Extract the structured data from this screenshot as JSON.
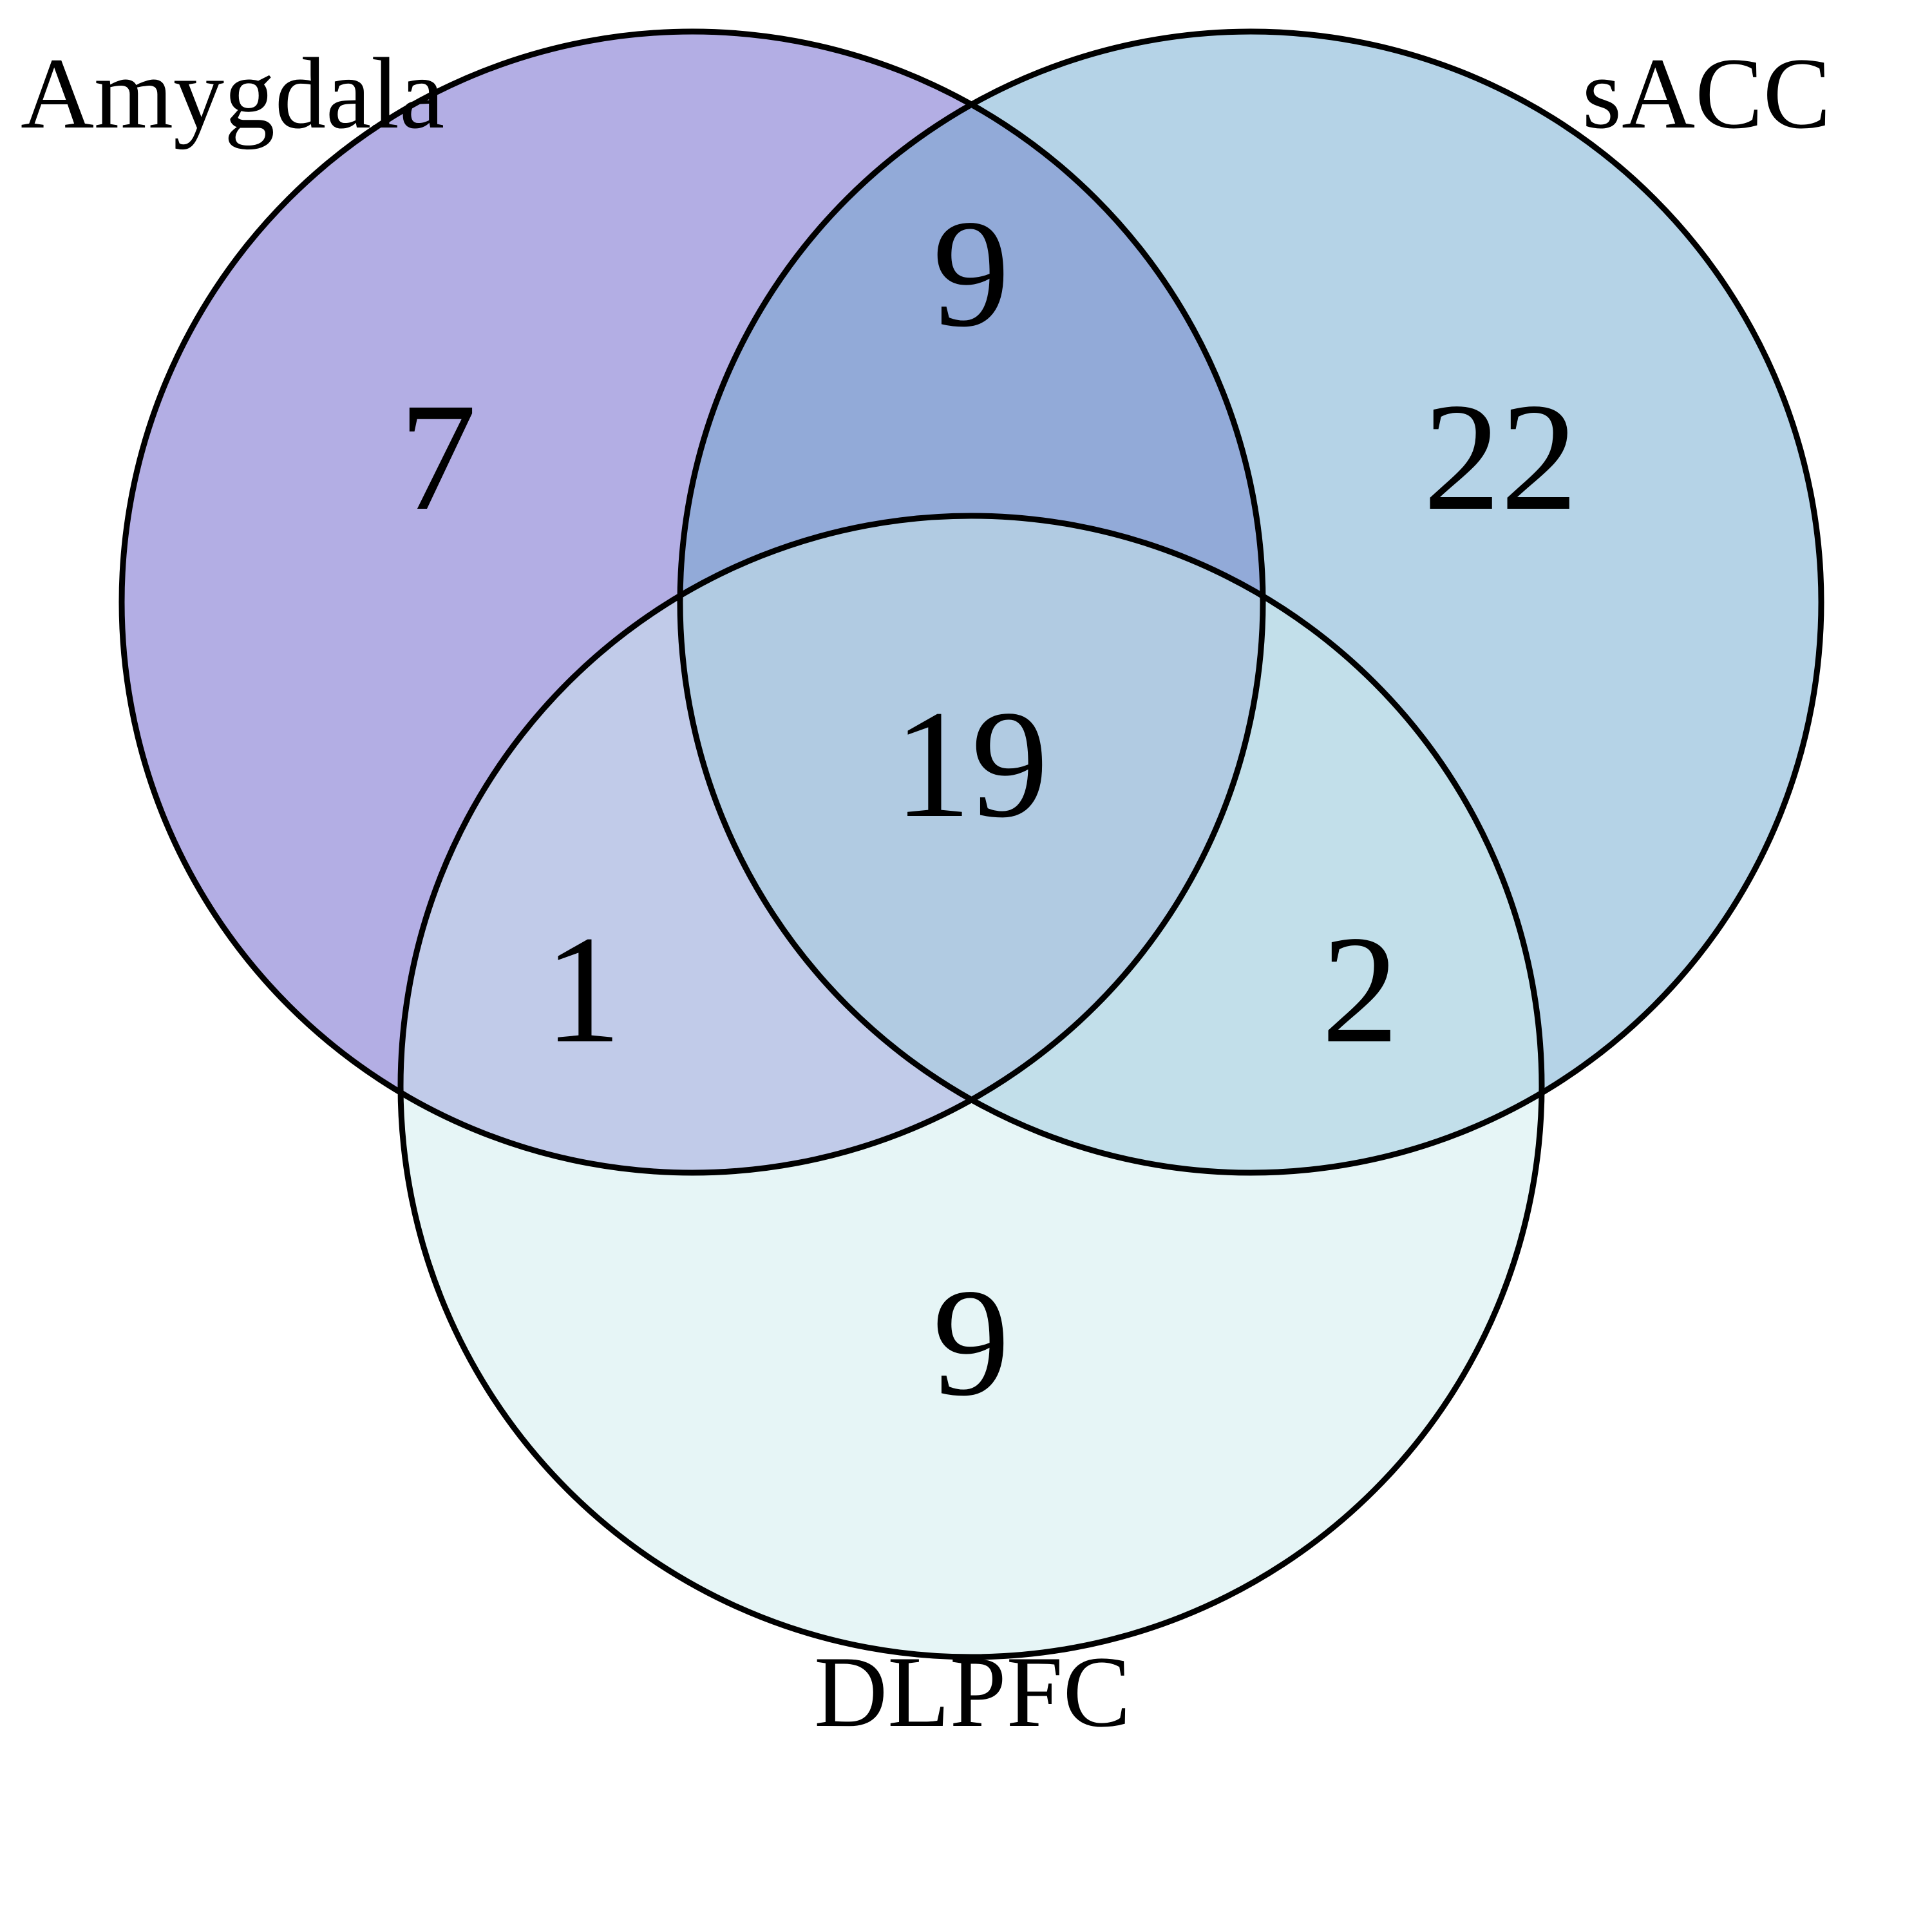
{
  "diagram": {
    "type": "venn3",
    "sets": [
      {
        "key": "A",
        "name": "Amygdala",
        "color": "#b3aee4"
      },
      {
        "key": "B",
        "name": "sACC",
        "color": "#b5d3e7"
      },
      {
        "key": "C",
        "name": "DLPFC",
        "color": "#e6f5f6"
      }
    ],
    "regions": {
      "A_only": "7",
      "B_only": "22",
      "C_only": "9",
      "AB_only": "9",
      "AC_only": "1",
      "BC_only": "2",
      "ABC": "19"
    },
    "region_colors": {
      "AB_only": "#92aad8",
      "AC_only": "#c1cbe9",
      "BC_only": "#c2dfea",
      "ABC": "#b1cbe2"
    },
    "outline_color": "#000000"
  }
}
